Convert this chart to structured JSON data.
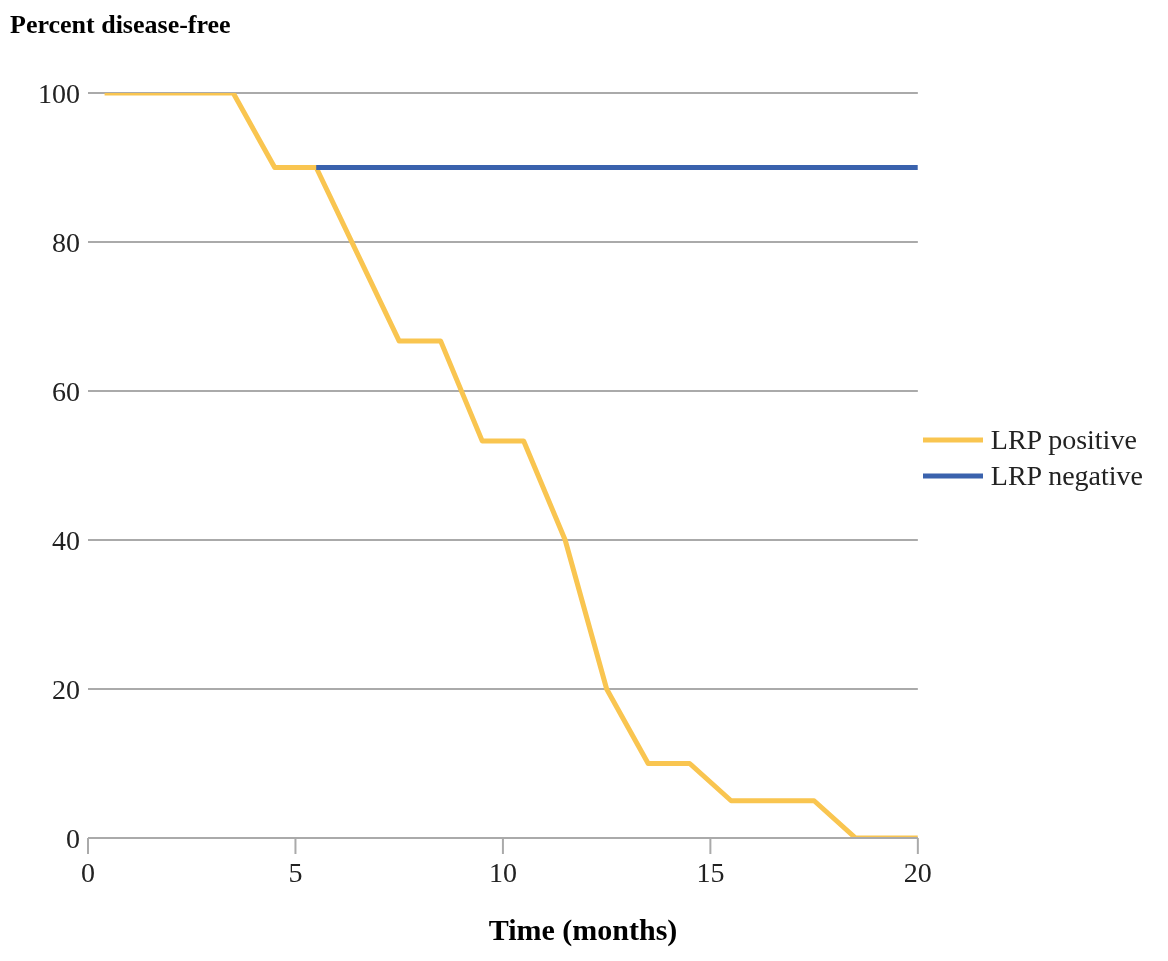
{
  "chart_data": {
    "type": "line",
    "xlabel": "Time (months)",
    "ylabel": "Percent disease-free",
    "xlim": [
      0,
      20
    ],
    "xticks": [
      0,
      5,
      10,
      15,
      20
    ],
    "ylim": [
      0,
      100
    ],
    "yticks": [
      0,
      20,
      40,
      60,
      80,
      100
    ],
    "grid": "y",
    "legend": "right",
    "marker": "none",
    "line_style": "solid",
    "series": [
      {
        "name": "LRP positive",
        "color": "#f9c550",
        "x": [
          0.4,
          3.5,
          4.5,
          5.5,
          7.5,
          8.5,
          9.5,
          10.5,
          11.5,
          12.5,
          13.5,
          14.5,
          15.5,
          17.5,
          18.5,
          20
        ],
        "values": [
          100,
          100,
          90,
          90,
          66.7,
          66.7,
          53.3,
          53.3,
          40,
          20,
          10,
          10,
          5,
          5,
          0,
          0
        ]
      },
      {
        "name": "LRP negative",
        "color": "#3a62ad",
        "x": [
          5.5,
          20
        ],
        "values": [
          90,
          90
        ]
      }
    ]
  }
}
